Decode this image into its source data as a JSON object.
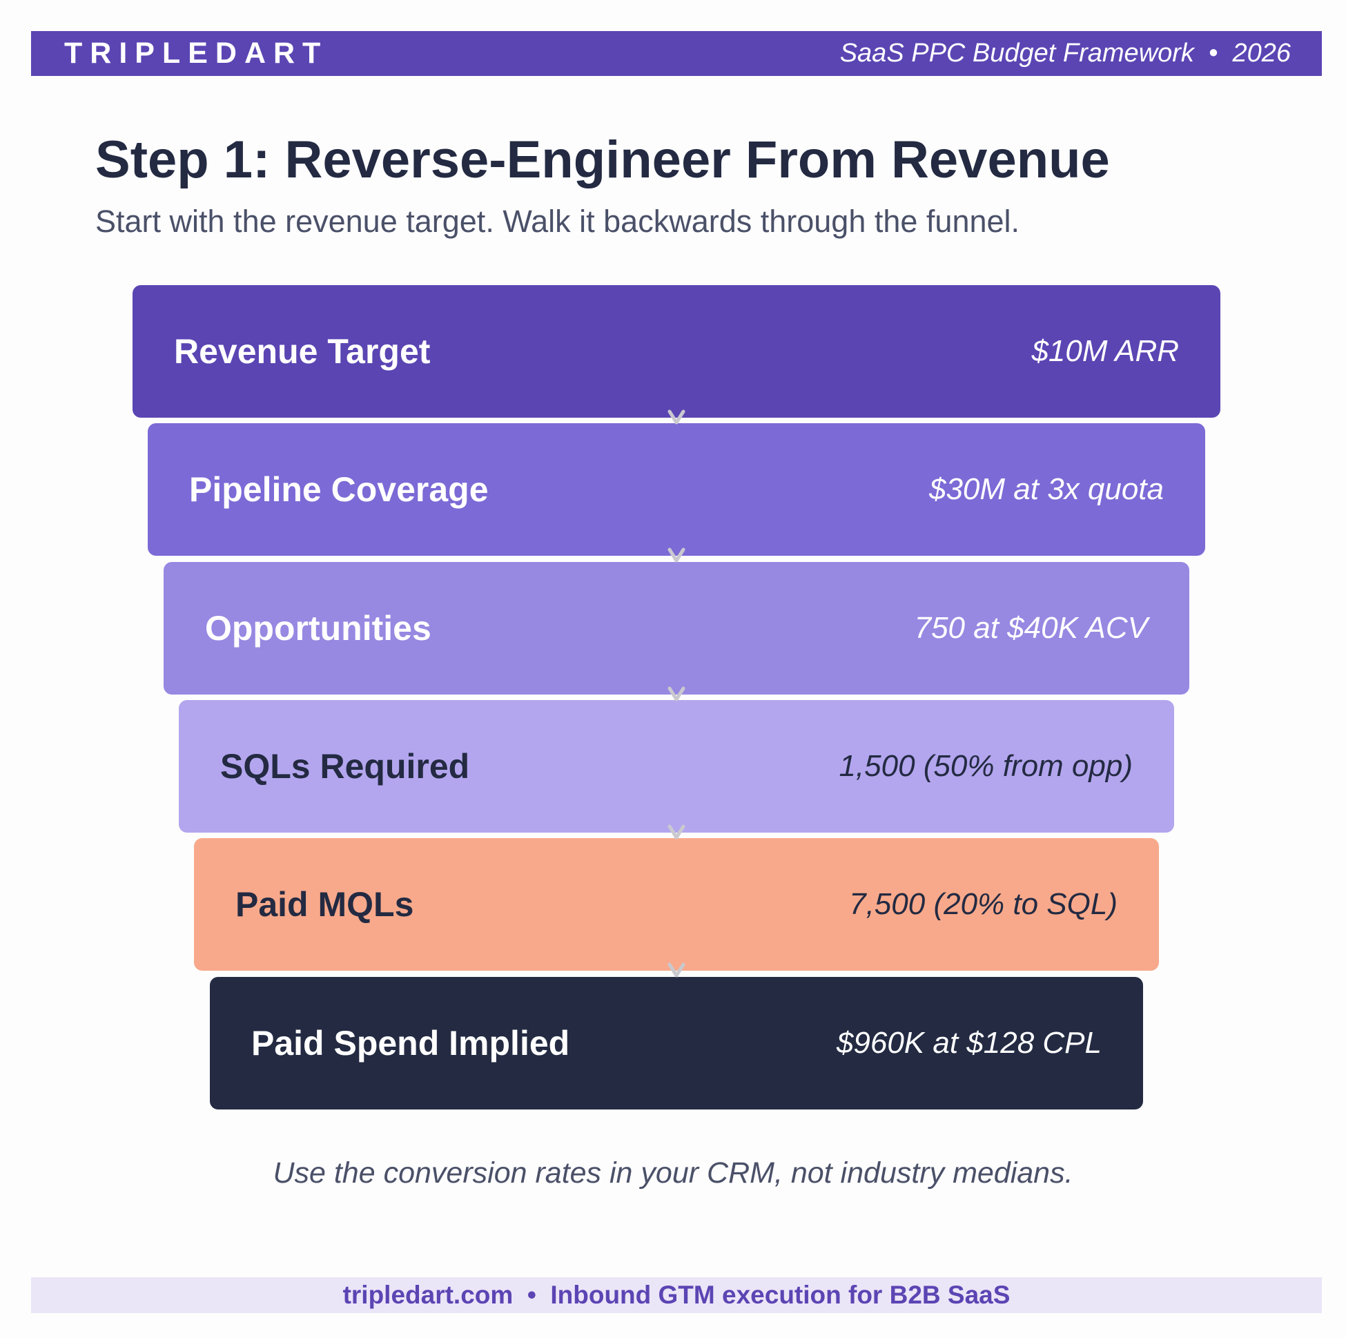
{
  "header": {
    "brand": "TRIPLEDART",
    "right_text": "SaaS PPC Budget Framework  •  2026"
  },
  "title": "Step 1: Reverse-Engineer From Revenue",
  "subtitle": "Start with the revenue target. Walk it backwards through the funnel.",
  "funnel": [
    {
      "label": "Revenue Target",
      "value": "$10M ARR",
      "color": "#5b45b3",
      "text_color": "#ffffff"
    },
    {
      "label": "Pipeline Coverage",
      "value": "$30M at 3x quota",
      "color": "#7c6ad6",
      "text_color": "#ffffff"
    },
    {
      "label": "Opportunities",
      "value": "750 at $40K ACV",
      "color": "#9788e2",
      "text_color": "#ffffff"
    },
    {
      "label": "SQLs Required",
      "value": "1,500 (50% from opp)",
      "color": "#b3a6ee",
      "text_color": "#232a42"
    },
    {
      "label": "Paid MQLs",
      "value": "7,500 (20% to SQL)",
      "color": "#f8a98b",
      "text_color": "#232a42"
    },
    {
      "label": "Paid Spend Implied",
      "value": "$960K at $128 CPL",
      "color": "#232a42",
      "text_color": "#ffffff"
    }
  ],
  "footnote": "Use the conversion rates in your CRM, not industry medians.",
  "footer": "tripledart.com  •  Inbound GTM execution for B2B SaaS",
  "arrow_icon": "chevron-down-icon",
  "arrow_color": "#c9c9cf"
}
